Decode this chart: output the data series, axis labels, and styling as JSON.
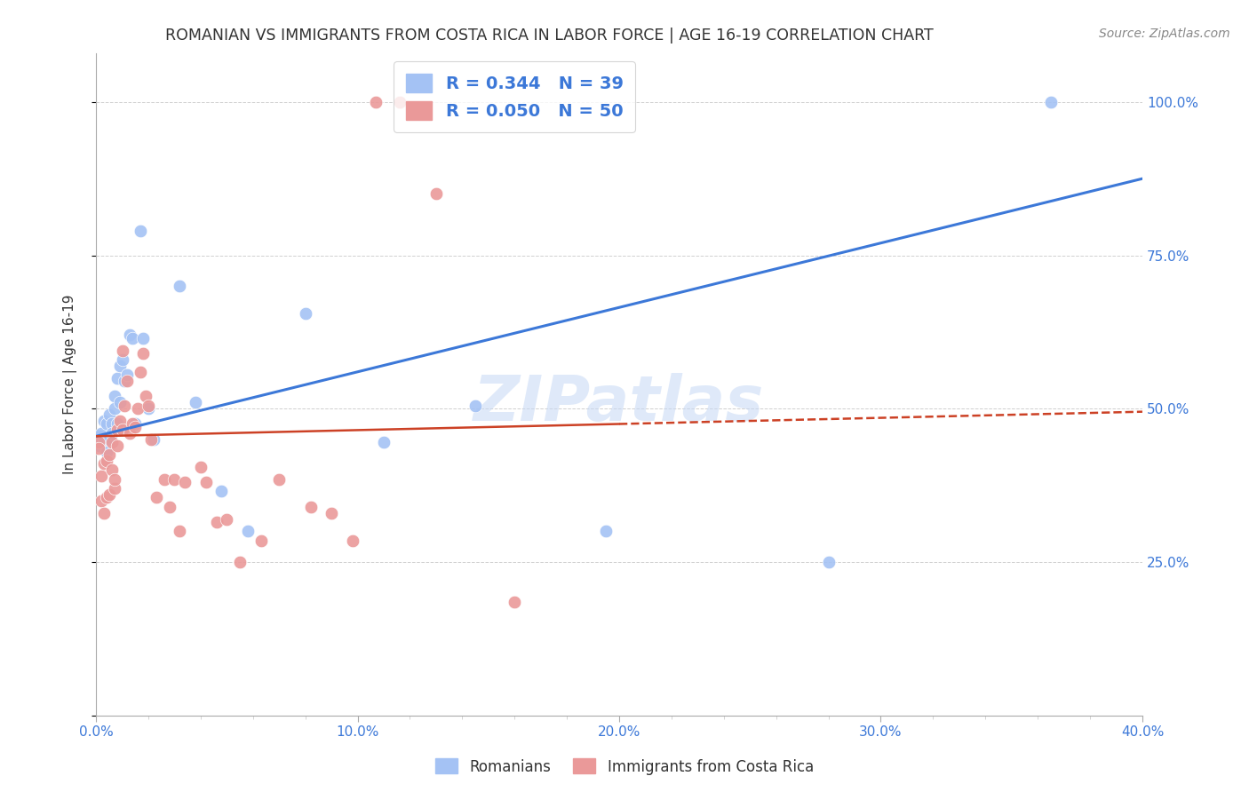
{
  "title": "ROMANIAN VS IMMIGRANTS FROM COSTA RICA IN LABOR FORCE | AGE 16-19 CORRELATION CHART",
  "source": "Source: ZipAtlas.com",
  "ylabel": "In Labor Force | Age 16-19",
  "xlim": [
    0.0,
    0.4
  ],
  "ylim": [
    0.0,
    1.08
  ],
  "ytick_values": [
    0.0,
    0.25,
    0.5,
    0.75,
    1.0
  ],
  "blue_color": "#a4c2f4",
  "pink_color": "#ea9999",
  "blue_line_color": "#3c78d8",
  "pink_line_color": "#cc4125",
  "legend_blue_label": "R = 0.344   N = 39",
  "legend_pink_label": "R = 0.050   N = 50",
  "legend_romanians": "Romanians",
  "legend_immigrants": "Immigrants from Costa Rica",
  "watermark": "ZIPatlas",
  "blue_trend_x0": 0.0,
  "blue_trend_y0": 0.455,
  "blue_trend_x1": 0.4,
  "blue_trend_y1": 0.875,
  "pink_trend_solid_x0": 0.0,
  "pink_trend_solid_y0": 0.455,
  "pink_trend_solid_x1": 0.2,
  "pink_trend_solid_y1": 0.475,
  "pink_trend_dash_x0": 0.2,
  "pink_trend_dash_y0": 0.475,
  "pink_trend_dash_x1": 0.4,
  "pink_trend_dash_y1": 0.495,
  "blue_x": [
    0.001,
    0.001,
    0.002,
    0.002,
    0.003,
    0.003,
    0.004,
    0.004,
    0.005,
    0.005,
    0.006,
    0.006,
    0.007,
    0.007,
    0.008,
    0.008,
    0.009,
    0.009,
    0.01,
    0.01,
    0.011,
    0.012,
    0.013,
    0.014,
    0.015,
    0.017,
    0.018,
    0.02,
    0.022,
    0.032,
    0.038,
    0.048,
    0.058,
    0.08,
    0.11,
    0.145,
    0.195,
    0.28,
    0.365
  ],
  "blue_y": [
    0.455,
    0.44,
    0.46,
    0.445,
    0.48,
    0.45,
    0.475,
    0.43,
    0.49,
    0.45,
    0.475,
    0.46,
    0.52,
    0.5,
    0.55,
    0.475,
    0.57,
    0.51,
    0.58,
    0.465,
    0.545,
    0.555,
    0.62,
    0.615,
    0.475,
    0.79,
    0.615,
    0.5,
    0.45,
    0.7,
    0.51,
    0.365,
    0.3,
    0.655,
    0.445,
    0.505,
    0.3,
    0.25,
    1.0
  ],
  "pink_x": [
    0.001,
    0.001,
    0.002,
    0.002,
    0.003,
    0.003,
    0.004,
    0.004,
    0.005,
    0.005,
    0.006,
    0.006,
    0.007,
    0.007,
    0.008,
    0.008,
    0.009,
    0.01,
    0.01,
    0.011,
    0.012,
    0.013,
    0.014,
    0.015,
    0.016,
    0.017,
    0.018,
    0.019,
    0.02,
    0.021,
    0.023,
    0.026,
    0.028,
    0.03,
    0.032,
    0.034,
    0.04,
    0.042,
    0.046,
    0.05,
    0.055,
    0.063,
    0.07,
    0.082,
    0.09,
    0.098,
    0.107,
    0.116,
    0.13,
    0.16
  ],
  "pink_y": [
    0.445,
    0.435,
    0.35,
    0.39,
    0.41,
    0.33,
    0.355,
    0.415,
    0.36,
    0.425,
    0.4,
    0.445,
    0.37,
    0.385,
    0.44,
    0.465,
    0.48,
    0.465,
    0.595,
    0.505,
    0.545,
    0.46,
    0.475,
    0.47,
    0.5,
    0.56,
    0.59,
    0.52,
    0.505,
    0.45,
    0.355,
    0.385,
    0.34,
    0.385,
    0.3,
    0.38,
    0.405,
    0.38,
    0.315,
    0.32,
    0.25,
    0.285,
    0.385,
    0.34,
    0.33,
    0.285,
    1.0,
    1.0,
    0.85,
    0.185
  ]
}
